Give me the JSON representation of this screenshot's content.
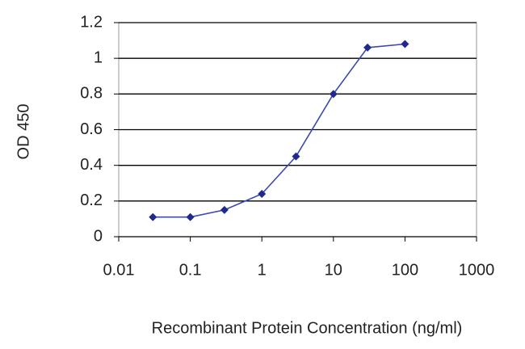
{
  "chart_data": {
    "type": "line",
    "xlabel": "Recombinant Protein Concentration (ng/ml)",
    "ylabel": "OD 450",
    "x": [
      0.03,
      0.1,
      0.3,
      1,
      3,
      10,
      30,
      100
    ],
    "series": [
      {
        "color": "#1f2a8a",
        "values": [
          0.11,
          0.11,
          0.15,
          0.24,
          0.45,
          0.8,
          1.06,
          1.08
        ]
      }
    ],
    "xscale": "log",
    "xlim": [
      0.01,
      1000
    ],
    "xticks": [
      0.01,
      0.1,
      1,
      10,
      100,
      1000
    ],
    "ylim": [
      0,
      1.2
    ],
    "yticks": [
      0,
      0.2,
      0.4,
      0.6,
      0.8,
      1,
      1.2
    ],
    "grid": true
  }
}
